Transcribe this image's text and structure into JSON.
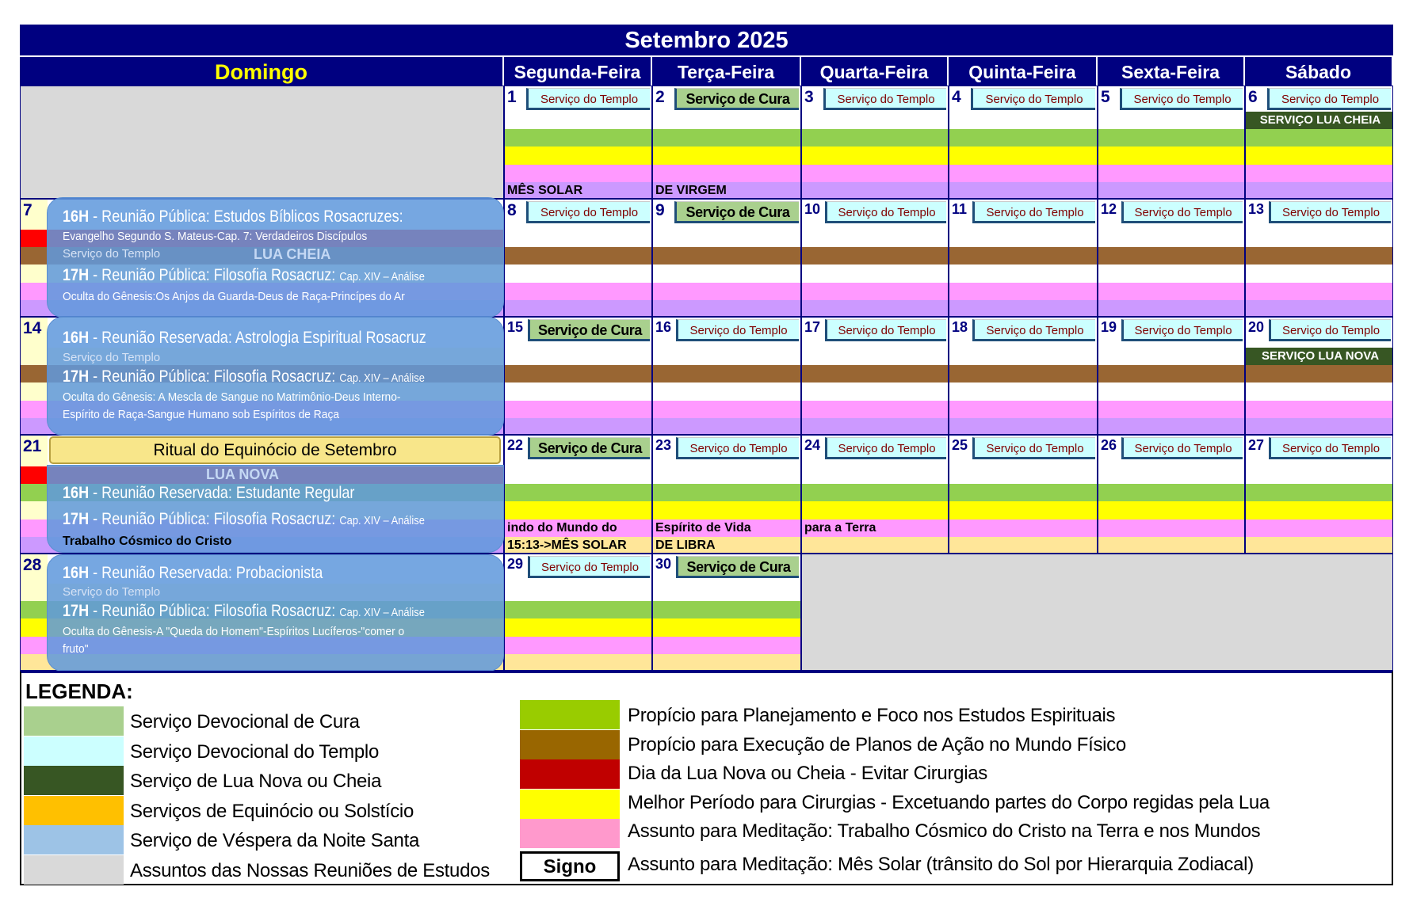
{
  "title": "Setembro 2025",
  "weekdays": [
    "Domingo",
    "Segunda-Feira",
    "Terça-Feira",
    "Quarta-Feira",
    "Quinta-Feira",
    "Sexta-Feira",
    "Sábado"
  ],
  "colors": {
    "W": "#ffffff",
    "G": "#92d050",
    "Y": "#ffff00",
    "P": "#ff99ff",
    "V": "#cc99ff",
    "B": "#996633",
    "R": "#ff0000",
    "L": "#ffffcc",
    "O": "#ffe699",
    "D": "#375623",
    "X": "#d9d9d9",
    "header": "#000080"
  },
  "weeks": [
    {
      "sunday": {
        "num": "",
        "bands": [
          "X",
          "X",
          "X",
          "X",
          "X"
        ],
        "empty": true
      },
      "days": [
        {
          "num": "1",
          "service": "Serviço do Templo",
          "type": "t",
          "bands": [
            "W",
            "G",
            "Y",
            "P",
            "V"
          ],
          "texts": [
            "",
            "",
            "",
            "",
            "MÊS SOLAR"
          ]
        },
        {
          "num": "2",
          "service": "Serviço de Cura",
          "type": "c",
          "bands": [
            "W",
            "G",
            "Y",
            "P",
            "V"
          ],
          "texts": [
            "",
            "",
            "",
            "",
            "DE VIRGEM"
          ]
        },
        {
          "num": "3",
          "service": "Serviço do Templo",
          "type": "t",
          "bands": [
            "W",
            "G",
            "Y",
            "P",
            "V"
          ],
          "texts": [
            "",
            "",
            "",
            "",
            ""
          ]
        },
        {
          "num": "4",
          "service": "Serviço do Templo",
          "type": "t",
          "bands": [
            "W",
            "G",
            "Y",
            "P",
            "V"
          ],
          "texts": [
            "",
            "",
            "",
            "",
            ""
          ]
        },
        {
          "num": "5",
          "service": "Serviço do Templo",
          "type": "t",
          "bands": [
            "W",
            "G",
            "Y",
            "P",
            "V"
          ],
          "texts": [
            "",
            "",
            "",
            "",
            ""
          ]
        },
        {
          "num": "6",
          "service": "Serviço do Templo",
          "type": "t",
          "bands": [
            "D",
            "G",
            "Y",
            "P",
            "V"
          ],
          "texts": [
            "SERVIÇO LUA CHEIA",
            "",
            "",
            "",
            ""
          ]
        }
      ]
    },
    {
      "sunday": {
        "num": "7",
        "bands": [
          "R",
          "B",
          "L",
          "P",
          "V"
        ],
        "hidden_service": "Serviço do Templo",
        "hidden_moon": "LUA CHEIA"
      },
      "days": [
        {
          "num": "8",
          "service": "Serviço do Templo",
          "type": "t",
          "bands": [
            "W",
            "B",
            "W",
            "P",
            "V"
          ],
          "texts": [
            "",
            "",
            "",
            "",
            ""
          ]
        },
        {
          "num": "9",
          "service": "Serviço de Cura",
          "type": "c",
          "bands": [
            "W",
            "B",
            "W",
            "P",
            "V"
          ],
          "texts": [
            "",
            "",
            "",
            "",
            ""
          ]
        },
        {
          "num": "10",
          "service": "Serviço do Templo",
          "type": "t",
          "bands": [
            "W",
            "B",
            "W",
            "P",
            "V"
          ],
          "texts": [
            "",
            "",
            "",
            "",
            ""
          ]
        },
        {
          "num": "11",
          "service": "Serviço do Templo",
          "type": "t",
          "bands": [
            "W",
            "B",
            "W",
            "P",
            "V"
          ],
          "texts": [
            "",
            "",
            "",
            "",
            ""
          ]
        },
        {
          "num": "12",
          "service": "Serviço do Templo",
          "type": "t",
          "bands": [
            "W",
            "B",
            "W",
            "P",
            "V"
          ],
          "texts": [
            "",
            "",
            "",
            "",
            ""
          ]
        },
        {
          "num": "13",
          "service": "Serviço do Templo",
          "type": "t",
          "bands": [
            "W",
            "B",
            "W",
            "P",
            "V"
          ],
          "texts": [
            "",
            "",
            "",
            "",
            ""
          ]
        }
      ]
    },
    {
      "sunday": {
        "num": "14",
        "bands": [
          "L",
          "B",
          "L",
          "P",
          "V"
        ],
        "hidden_service": "Serviço do Templo"
      },
      "days": [
        {
          "num": "15",
          "service": "Serviço de Cura",
          "type": "c",
          "bands": [
            "W",
            "B",
            "W",
            "P",
            "V"
          ],
          "texts": [
            "",
            "",
            "",
            "",
            ""
          ]
        },
        {
          "num": "16",
          "service": "Serviço do Templo",
          "type": "t",
          "bands": [
            "W",
            "B",
            "W",
            "P",
            "V"
          ],
          "texts": [
            "",
            "",
            "",
            "",
            ""
          ]
        },
        {
          "num": "17",
          "service": "Serviço do Templo",
          "type": "t",
          "bands": [
            "W",
            "B",
            "W",
            "P",
            "V"
          ],
          "texts": [
            "",
            "",
            "",
            "",
            ""
          ]
        },
        {
          "num": "18",
          "service": "Serviço do Templo",
          "type": "t",
          "bands": [
            "W",
            "B",
            "W",
            "P",
            "V"
          ],
          "texts": [
            "",
            "",
            "",
            "",
            ""
          ]
        },
        {
          "num": "19",
          "service": "Serviço do Templo",
          "type": "t",
          "bands": [
            "W",
            "B",
            "W",
            "P",
            "V"
          ],
          "texts": [
            "",
            "",
            "",
            "",
            ""
          ]
        },
        {
          "num": "20",
          "service": "Serviço do Templo",
          "type": "t",
          "bands": [
            "D",
            "B",
            "W",
            "P",
            "V"
          ],
          "texts": [
            "SERVIÇO LUA NOVA",
            "",
            "",
            "",
            ""
          ]
        }
      ]
    },
    {
      "sunday": {
        "num": "21",
        "bands": [
          "R",
          "G",
          "L",
          "P",
          "V"
        ],
        "hidden_moon": "LUA NOVA",
        "hidden_band_text": "Trabalho Cósmico do Cristo"
      },
      "days": [
        {
          "num": "22",
          "service": "Serviço de Cura",
          "type": "c",
          "bands": [
            "W",
            "G",
            "Y",
            "P",
            "O"
          ],
          "texts": [
            "",
            "",
            "",
            "indo do Mundo do",
            "15:13->MÊS SOLAR"
          ]
        },
        {
          "num": "23",
          "service": "Serviço do Templo",
          "type": "t",
          "bands": [
            "W",
            "G",
            "Y",
            "P",
            "O"
          ],
          "texts": [
            "",
            "",
            "",
            "Espírito de Vida",
            "DE LIBRA"
          ]
        },
        {
          "num": "24",
          "service": "Serviço do Templo",
          "type": "t",
          "bands": [
            "W",
            "G",
            "Y",
            "P",
            "O"
          ],
          "texts": [
            "",
            "",
            "",
            "para a Terra",
            ""
          ]
        },
        {
          "num": "25",
          "service": "Serviço do Templo",
          "type": "t",
          "bands": [
            "W",
            "G",
            "Y",
            "P",
            "O"
          ],
          "texts": [
            "",
            "",
            "",
            "",
            ""
          ]
        },
        {
          "num": "26",
          "service": "Serviço do Templo",
          "type": "t",
          "bands": [
            "W",
            "G",
            "Y",
            "P",
            "O"
          ],
          "texts": [
            "",
            "",
            "",
            "",
            ""
          ]
        },
        {
          "num": "27",
          "service": "Serviço do Templo",
          "type": "t",
          "bands": [
            "W",
            "G",
            "Y",
            "P",
            "O"
          ],
          "texts": [
            "",
            "",
            "",
            "",
            ""
          ]
        }
      ]
    },
    {
      "sunday": {
        "num": "28",
        "bands": [
          "L",
          "G",
          "Y",
          "P",
          "O"
        ],
        "hidden_service": "Serviço do Templo"
      },
      "days": [
        {
          "num": "29",
          "service": "Serviço do Templo",
          "type": "t",
          "bands": [
            "W",
            "G",
            "Y",
            "P",
            "O"
          ],
          "texts": [
            "",
            "",
            "",
            "",
            ""
          ]
        },
        {
          "num": "30",
          "service": "Serviço de Cura",
          "type": "c",
          "bands": [
            "W",
            "G",
            "Y",
            "P",
            "O"
          ],
          "texts": [
            "",
            "",
            "",
            "",
            ""
          ]
        }
      ]
    }
  ],
  "events": {
    "w2": {
      "l1_time": "16H",
      "l1": " - Reunião Pública: Estudos Bíblicos Rosacruzes:",
      "l1_sub": "Evangelho Segundo S. Mateus-Cap. 7: Verdadeiros Discípulos",
      "l2_time": "17H",
      "l2": " - Reunião Pública: Filosofia Rosacruz: ",
      "l2_small": "Cap. XIV – Análise",
      "l2_sub": "Oculta do Gênesis:Os Anjos da Guarda-Deus de Raça-Princípes do Ar"
    },
    "w3": {
      "l1_time": "16H",
      "l1": " - Reunião Reservada: Astrologia Espiritual Rosacruz",
      "l2_time": "17H",
      "l2": " - Reunião Pública: Filosofia Rosacruz: ",
      "l2_small": "Cap. XIV – Análise",
      "l2_sub": "Oculta do Gênesis: A Mescla de Sangue no Matrimônio-Deus Interno-",
      "l2_sub2": "Espírito de Raça-Sangue Humano sob Espíritos de Raça"
    },
    "w4": {
      "ritual": "Ritual do Equinócio de Setembro",
      "l1_time": "16H",
      "l1": " - Reunião Reservada: Estudante Regular",
      "l2_time": "17H",
      "l2": " - Reunião Pública: Filosofia Rosacruz: ",
      "l2_small": "Cap. XIV – Análise"
    },
    "w5": {
      "l1_time": "16H",
      "l1": " - Reunião Reservada: Probacionista",
      "l2_time": "17H",
      "l2": " - Reunião Pública: Filosofia Rosacruz: ",
      "l2_small": "Cap. XIV – Análise",
      "l2_sub": "Oculta do Gênesis-A \"Queda do Homem\"-Espíritos Lucíferos-\"comer o",
      "l2_sub2": "fruto\""
    }
  },
  "legend": {
    "title": "LEGENDA:",
    "left": [
      {
        "color": "#a9d08e",
        "label": "Serviço Devocional de Cura"
      },
      {
        "color": "#ccffff",
        "label": "Serviço Devocional do Templo"
      },
      {
        "color": "#375623",
        "label": "Serviço de Lua Nova ou Cheia"
      },
      {
        "color": "#ffc000",
        "label": "Serviços de Equinócio ou Solstício"
      },
      {
        "color": "#9dc3e6",
        "label": "Serviço de Véspera da Noite Santa"
      },
      {
        "color": "#d9d9d9",
        "label": "Assuntos das Nossas Reuniões de Estudos"
      }
    ],
    "right": [
      {
        "color": "#99cc00",
        "label": "Propício para Planejamento e Foco nos Estudos Espirituais"
      },
      {
        "color": "#996600",
        "label": "Propício para Execução de Planos de Ação no Mundo Físico"
      },
      {
        "color": "#c00000",
        "label": "Dia da Lua Nova ou Cheia - Evitar Cirurgias"
      },
      {
        "color": "#ffff00",
        "label": "Melhor Período para Cirurgias - Excetuando partes do Corpo regidas pela Lua"
      },
      {
        "color": "#ff99cc",
        "label": "Assunto para Meditação: Trabalho Cósmico do Cristo na Terra e nos Mundos"
      }
    ],
    "signo_label": "Signo",
    "signo_desc": "Assunto para Meditação: Mês Solar (trânsito do Sol por Hierarquia Zodiacal)"
  }
}
